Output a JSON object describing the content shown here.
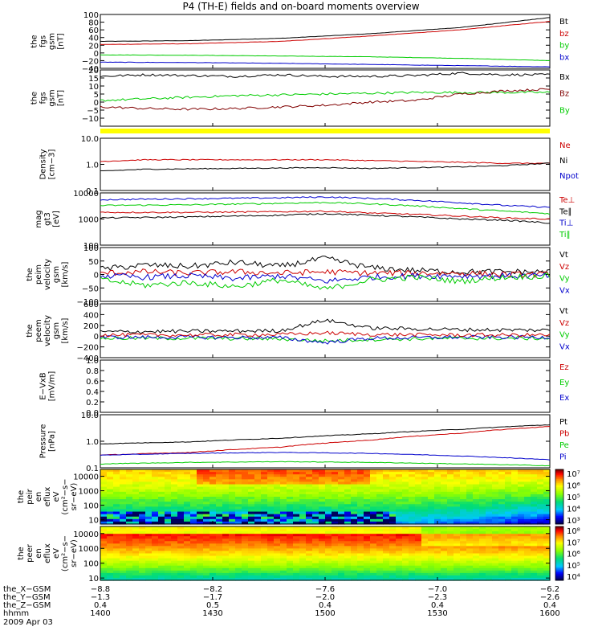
{
  "title": "P4 (TH-E) fields and on-board moments overview",
  "colors": {
    "black": "#000000",
    "red": "#cc0000",
    "green": "#00cc00",
    "blue": "#0000cc",
    "darkred": "#800000",
    "yellow": "#ffff00"
  },
  "chart_data": [
    {
      "type": "line",
      "ylabel": [
        "the",
        "fgs",
        "gsm",
        "[nT]"
      ],
      "ylim": [
        -40,
        100
      ],
      "ticks": [
        {
          "v": 100,
          "t": "100"
        },
        {
          "v": 80,
          "t": "80"
        },
        {
          "v": 60,
          "t": "60"
        },
        {
          "v": 40,
          "t": "40"
        },
        {
          "v": 20,
          "t": "20"
        },
        {
          "v": 0,
          "t": "0"
        },
        {
          "v": -20,
          "t": "−20"
        },
        {
          "v": -40,
          "t": "−40"
        }
      ],
      "legend": [
        {
          "text": "Bt",
          "color": "#000000"
        },
        {
          "text": "bz",
          "color": "#cc0000"
        },
        {
          "text": "by",
          "color": "#00cc00"
        },
        {
          "text": "bx",
          "color": "#0000cc"
        }
      ],
      "series": [
        {
          "color": "#000000",
          "x": [
            0,
            0.2,
            0.4,
            0.6,
            0.8,
            1.0
          ],
          "y": [
            30,
            32,
            38,
            50,
            66,
            92
          ]
        },
        {
          "color": "#cc0000",
          "x": [
            0,
            0.2,
            0.4,
            0.6,
            0.8,
            1.0
          ],
          "y": [
            22,
            24,
            30,
            44,
            60,
            82
          ]
        },
        {
          "color": "#00cc00",
          "x": [
            0,
            0.2,
            0.4,
            0.6,
            0.8,
            1.0
          ],
          "y": [
            -5,
            -6,
            -8,
            -10,
            -14,
            -20
          ]
        },
        {
          "color": "#0000cc",
          "x": [
            0,
            0.2,
            0.4,
            0.6,
            0.8,
            1.0
          ],
          "y": [
            -24,
            -25,
            -27,
            -30,
            -33,
            -36
          ]
        }
      ]
    },
    {
      "type": "line",
      "ylabel": [
        "the",
        "fgs",
        "gsm",
        "[nT]"
      ],
      "ylim": [
        -15,
        20
      ],
      "ticks": [
        {
          "v": 20,
          "t": "20"
        },
        {
          "v": 15,
          "t": "15"
        },
        {
          "v": 10,
          "t": "10"
        },
        {
          "v": 5,
          "t": "5"
        },
        {
          "v": 0,
          "t": "0"
        },
        {
          "v": -5,
          "t": "−5"
        },
        {
          "v": -10,
          "t": "−10"
        }
      ],
      "legend": [
        {
          "text": "Bx",
          "color": "#000000"
        },
        {
          "text": "Bz",
          "color": "#800000"
        },
        {
          "text": "By",
          "color": "#00cc00"
        }
      ],
      "series": [
        {
          "color": "#000000",
          "x": [
            0,
            0.1,
            0.2,
            0.3,
            0.4,
            0.5,
            0.6,
            0.7,
            0.8,
            0.9,
            1.0
          ],
          "y": [
            16,
            17,
            16.5,
            16,
            17,
            16,
            16,
            16.5,
            18,
            17,
            17
          ]
        },
        {
          "color": "#00cc00",
          "x": [
            0,
            0.1,
            0.2,
            0.3,
            0.4,
            0.5,
            0.6,
            0.7,
            0.8,
            0.9,
            1.0
          ],
          "y": [
            1,
            2,
            3,
            4,
            4.5,
            5,
            5.5,
            6,
            6,
            6,
            6
          ]
        },
        {
          "color": "#800000",
          "x": [
            0,
            0.1,
            0.2,
            0.3,
            0.4,
            0.5,
            0.6,
            0.7,
            0.8,
            0.9,
            1.0
          ],
          "y": [
            -3,
            -4,
            -4.5,
            -4,
            -3,
            -2,
            0,
            1,
            5,
            7,
            8
          ]
        }
      ]
    },
    {
      "type": "line",
      "ylabel": [
        "Density",
        "[cm−3]"
      ],
      "ylim_log": [
        0.1,
        10
      ],
      "ticks": [
        {
          "v": 10,
          "t": "10.0"
        },
        {
          "v": 1,
          "t": "1.0"
        },
        {
          "v": 0.1,
          "t": "0.1"
        }
      ],
      "legend": [
        {
          "text": "Ne",
          "color": "#cc0000"
        },
        {
          "text": "Ni",
          "color": "#000000"
        },
        {
          "text": "Npot",
          "color": "#0000cc"
        }
      ],
      "series": [
        {
          "color": "#cc0000",
          "x": [
            0,
            0.1,
            0.3,
            0.5,
            0.6,
            0.7,
            0.8,
            0.9,
            1.0
          ],
          "y": [
            1.3,
            1.5,
            1.5,
            1.5,
            1.4,
            1.3,
            1.2,
            1.1,
            1.1
          ]
        },
        {
          "color": "#000000",
          "x": [
            0,
            0.1,
            0.3,
            0.5,
            0.6,
            0.7,
            0.8,
            0.9,
            1.0
          ],
          "y": [
            0.55,
            0.65,
            0.7,
            0.75,
            0.7,
            0.75,
            0.8,
            0.9,
            1.1
          ]
        }
      ]
    },
    {
      "type": "line",
      "ylabel": [
        "mag",
        "gt3",
        "[eV]"
      ],
      "ylim_log": [
        100,
        10000
      ],
      "ticks": [
        {
          "v": 10000,
          "t": "10000"
        },
        {
          "v": 1000,
          "t": "1000"
        },
        {
          "v": 100,
          "t": "100"
        }
      ],
      "legend": [
        {
          "text": "Te⊥",
          "color": "#cc0000"
        },
        {
          "text": "Te∥",
          "color": "#000000"
        },
        {
          "text": "Ti⊥",
          "color": "#0000cc"
        },
        {
          "text": "Ti∥",
          "color": "#00cc00"
        }
      ],
      "series": [
        {
          "color": "#0000cc",
          "x": [
            0,
            0.2,
            0.4,
            0.5,
            0.6,
            0.7,
            0.8,
            0.9,
            1.0
          ],
          "y": [
            5500,
            6000,
            6500,
            7000,
            6200,
            5200,
            4200,
            3300,
            2800
          ]
        },
        {
          "color": "#00cc00",
          "x": [
            0,
            0.2,
            0.4,
            0.5,
            0.6,
            0.7,
            0.8,
            0.9,
            1.0
          ],
          "y": [
            3300,
            3500,
            4000,
            4300,
            3800,
            3200,
            2500,
            2000,
            1600
          ]
        },
        {
          "color": "#cc0000",
          "x": [
            0,
            0.2,
            0.4,
            0.5,
            0.6,
            0.7,
            0.8,
            0.9,
            1.0
          ],
          "y": [
            1800,
            1800,
            1900,
            2000,
            1700,
            1500,
            1300,
            1100,
            1000
          ]
        },
        {
          "color": "#000000",
          "x": [
            0,
            0.2,
            0.4,
            0.5,
            0.6,
            0.7,
            0.8,
            0.9,
            1.0
          ],
          "y": [
            1100,
            1200,
            1400,
            1600,
            1400,
            1200,
            1000,
            900,
            700
          ]
        }
      ]
    },
    {
      "type": "line",
      "ylabel": [
        "the",
        "peim",
        "velocity",
        "gsm",
        "[km/s]"
      ],
      "ylim": [
        -100,
        100
      ],
      "ticks": [
        {
          "v": 100,
          "t": "100"
        },
        {
          "v": 50,
          "t": "50"
        },
        {
          "v": 0,
          "t": "0"
        },
        {
          "v": -50,
          "t": "−50"
        },
        {
          "v": -100,
          "t": "−100"
        }
      ],
      "legend": [
        {
          "text": "Vt",
          "color": "#000000"
        },
        {
          "text": "Vz",
          "color": "#cc0000"
        },
        {
          "text": "Vy",
          "color": "#00cc00"
        },
        {
          "text": "Vx",
          "color": "#0000cc"
        }
      ],
      "series": [
        {
          "color": "#000000",
          "x": [
            0,
            0.1,
            0.2,
            0.3,
            0.4,
            0.5,
            0.6,
            0.7,
            0.8,
            0.9,
            1.0
          ],
          "y": [
            20,
            35,
            30,
            45,
            30,
            60,
            25,
            15,
            10,
            10,
            10
          ]
        },
        {
          "color": "#cc0000",
          "x": [
            0,
            0.1,
            0.2,
            0.3,
            0.4,
            0.5,
            0.6,
            0.7,
            0.8,
            0.9,
            1.0
          ],
          "y": [
            5,
            10,
            5,
            10,
            5,
            10,
            5,
            5,
            5,
            0,
            0
          ]
        },
        {
          "color": "#0000cc",
          "x": [
            0,
            0.1,
            0.2,
            0.3,
            0.4,
            0.5,
            0.6,
            0.7,
            0.8,
            0.9,
            1.0
          ],
          "y": [
            -5,
            -10,
            -5,
            -15,
            -5,
            -25,
            -10,
            -5,
            -5,
            -5,
            -5
          ]
        },
        {
          "color": "#00cc00",
          "x": [
            0,
            0.1,
            0.2,
            0.3,
            0.4,
            0.5,
            0.6,
            0.7,
            0.8,
            0.9,
            1.0
          ],
          "y": [
            -20,
            -40,
            -30,
            -45,
            -20,
            -55,
            -20,
            -10,
            -25,
            -10,
            -5
          ]
        }
      ]
    },
    {
      "type": "line",
      "ylabel": [
        "the",
        "peem",
        "velocity",
        "gsm",
        "[km/s]"
      ],
      "ylim": [
        -400,
        600
      ],
      "ticks": [
        {
          "v": 600,
          "t": "600"
        },
        {
          "v": 400,
          "t": "400"
        },
        {
          "v": 200,
          "t": "200"
        },
        {
          "v": 0,
          "t": "0"
        },
        {
          "v": -200,
          "t": "−200"
        },
        {
          "v": -400,
          "t": "−400"
        }
      ],
      "legend": [
        {
          "text": "Vt",
          "color": "#000000"
        },
        {
          "text": "Vz",
          "color": "#cc0000"
        },
        {
          "text": "Vy",
          "color": "#00cc00"
        },
        {
          "text": "Vx",
          "color": "#0000cc"
        }
      ],
      "series": [
        {
          "color": "#00cc00",
          "x": [
            0,
            0.2,
            0.4,
            0.5,
            0.6,
            0.8,
            1.0
          ],
          "y": [
            -40,
            -40,
            -50,
            -90,
            -60,
            -40,
            -40
          ]
        },
        {
          "color": "#0000cc",
          "x": [
            0,
            0.2,
            0.4,
            0.5,
            0.6,
            0.8,
            1.0
          ],
          "y": [
            -20,
            -20,
            -30,
            -120,
            -40,
            -20,
            -20
          ]
        },
        {
          "color": "#cc0000",
          "x": [
            0,
            0.2,
            0.4,
            0.5,
            0.6,
            0.8,
            1.0
          ],
          "y": [
            20,
            20,
            30,
            60,
            30,
            20,
            20
          ]
        },
        {
          "color": "#000000",
          "x": [
            0,
            0.2,
            0.4,
            0.5,
            0.6,
            0.8,
            1.0
          ],
          "y": [
            80,
            90,
            100,
            300,
            150,
            120,
            110
          ]
        }
      ]
    },
    {
      "type": "line",
      "ylabel": [
        "E−VxB",
        "[mV/m]"
      ],
      "ylim": [
        0,
        1
      ],
      "ticks": [
        {
          "v": 1.0,
          "t": "1.0"
        },
        {
          "v": 0.8,
          "t": "0.8"
        },
        {
          "v": 0.6,
          "t": "0.6"
        },
        {
          "v": 0.4,
          "t": "0.4"
        },
        {
          "v": 0.2,
          "t": "0.2"
        },
        {
          "v": 0.0,
          "t": "0.0"
        }
      ],
      "legend": [
        {
          "text": "Ez",
          "color": "#cc0000"
        },
        {
          "text": "Ey",
          "color": "#00cc00"
        },
        {
          "text": "Ex",
          "color": "#0000cc"
        }
      ],
      "series": []
    },
    {
      "type": "line",
      "ylabel": [
        "Pressure",
        "[nPa]"
      ],
      "ylim_log": [
        0.1,
        10
      ],
      "ticks": [
        {
          "v": 10,
          "t": "10.0"
        },
        {
          "v": 1,
          "t": "1.0"
        },
        {
          "v": 0.1,
          "t": "0.1"
        }
      ],
      "legend": [
        {
          "text": "Pt",
          "color": "#000000"
        },
        {
          "text": "Pb",
          "color": "#cc0000"
        },
        {
          "text": "Pe",
          "color": "#00cc00"
        },
        {
          "text": "Pi",
          "color": "#0000cc"
        }
      ],
      "series": [
        {
          "color": "#000000",
          "x": [
            0,
            0.2,
            0.4,
            0.6,
            0.8,
            1.0
          ],
          "y": [
            0.8,
            0.95,
            1.3,
            1.9,
            2.8,
            4.2
          ]
        },
        {
          "color": "#cc0000",
          "x": [
            0,
            0.2,
            0.4,
            0.6,
            0.8,
            1.0
          ],
          "y": [
            0.3,
            0.38,
            0.6,
            1.1,
            2.0,
            3.6
          ]
        },
        {
          "color": "#0000cc",
          "x": [
            0,
            0.2,
            0.4,
            0.6,
            0.8,
            1.0
          ],
          "y": [
            0.3,
            0.35,
            0.38,
            0.35,
            0.28,
            0.2
          ]
        },
        {
          "color": "#00cc00",
          "x": [
            0,
            0.2,
            0.4,
            0.6,
            0.8,
            1.0
          ],
          "y": [
            0.14,
            0.16,
            0.17,
            0.16,
            0.14,
            0.12
          ]
        }
      ]
    },
    {
      "type": "heatmap",
      "ylabel": [
        "the",
        "peir",
        "en",
        "eflux",
        "eV",
        "(cm²−s−",
        "sr−eV)"
      ],
      "ylim_log": [
        5,
        30000
      ],
      "ticks": [
        {
          "v": 10000,
          "t": "10000"
        },
        {
          "v": 1000,
          "t": "1000"
        },
        {
          "v": 100,
          "t": "100"
        },
        {
          "v": 10,
          "t": "10"
        }
      ],
      "colorbar": {
        "min_exp": 3,
        "max_exp": 7,
        "labels": [
          "10⁷",
          "10⁶",
          "10⁵",
          "10⁴",
          "10³"
        ]
      }
    },
    {
      "type": "heatmap",
      "ylabel": [
        "the",
        "peer",
        "en",
        "eflux",
        "eV",
        "(cm²−s−",
        "sr−eV)"
      ],
      "ylim_log": [
        7,
        30000
      ],
      "ticks": [
        {
          "v": 10000,
          "t": "10000"
        },
        {
          "v": 1000,
          "t": "1000"
        },
        {
          "v": 100,
          "t": "100"
        },
        {
          "v": 10,
          "t": "10"
        }
      ],
      "colorbar": {
        "min_exp": 4,
        "max_exp": 8,
        "labels": [
          "10⁸",
          "10⁷",
          "10⁶",
          "10⁵",
          "10⁴"
        ]
      }
    }
  ],
  "footer": {
    "rows": [
      {
        "label": "the_X−GSM",
        "values": [
          "−8.8",
          "−8.2",
          "−7.6",
          "−7.0",
          "−6.2"
        ]
      },
      {
        "label": "the_Y−GSM",
        "values": [
          "−1.3",
          "−1.7",
          "−2.0",
          "−2.3",
          "−2.6"
        ]
      },
      {
        "label": "the_Z−GSM",
        "values": [
          "0.4",
          "0.5",
          "0.4",
          "0.4",
          "0.4"
        ]
      },
      {
        "label": "hhmm",
        "values": [
          "1400",
          "1430",
          "1500",
          "1530",
          "1600"
        ]
      }
    ],
    "date": "2009 Apr 03"
  }
}
